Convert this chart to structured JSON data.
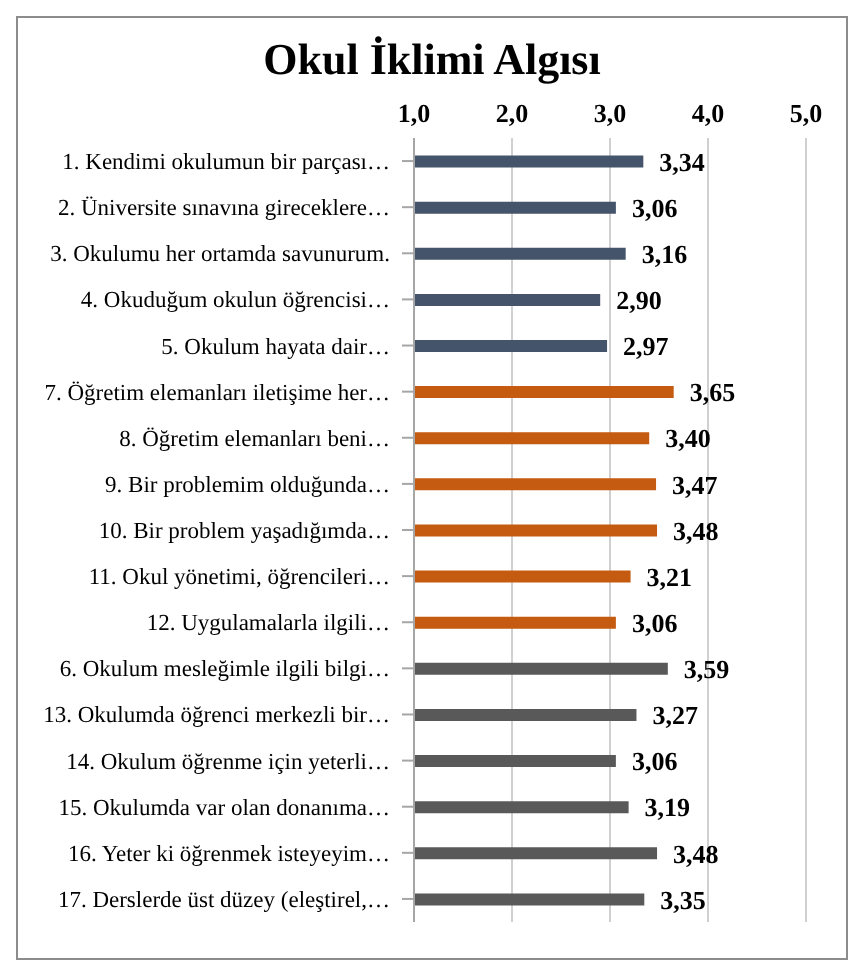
{
  "chart_data": {
    "type": "bar",
    "orientation": "horizontal",
    "title": "Okul İklimi Algısı",
    "categories": [
      "1. Kendimi okulumun bir parçası…",
      "2. Üniversite sınavına gireceklere…",
      "3. Okulumu her ortamda savunurum.",
      "4. Okuduğum okulun öğrencisi…",
      "5. Okulum hayata dair…",
      "7. Öğretim elemanları iletişime her…",
      "8. Öğretim elemanları beni…",
      "9. Bir problemim olduğunda…",
      "10. Bir problem yaşadığımda…",
      "11. Okul yönetimi, öğrencileri…",
      "12. Uygulamalarla ilgili…",
      "6. Okulum mesleğimle ilgili bilgi…",
      "13. Okulumda öğrenci merkezli bir…",
      "14. Okulum öğrenme için yeterli…",
      "15. Okulumda var olan donanıma…",
      "16. Yeter ki öğrenmek isteyeyim…",
      "17. Derslerde üst düzey (eleştirel,…"
    ],
    "values": [
      3.34,
      3.06,
      3.16,
      2.9,
      2.97,
      3.65,
      3.4,
      3.47,
      3.48,
      3.21,
      3.06,
      3.59,
      3.27,
      3.06,
      3.19,
      3.48,
      3.35
    ],
    "value_labels": [
      "3,34",
      "3,06",
      "3,16",
      "2,90",
      "2,97",
      "3,65",
      "3,40",
      "3,47",
      "3,48",
      "3,21",
      "3,06",
      "3,59",
      "3,27",
      "3,06",
      "3,19",
      "3,48",
      "3,35"
    ],
    "colors": [
      "#44546a",
      "#44546a",
      "#44546a",
      "#44546a",
      "#44546a",
      "#c55a11",
      "#c55a11",
      "#c55a11",
      "#c55a11",
      "#c55a11",
      "#c55a11",
      "#595959",
      "#595959",
      "#595959",
      "#595959",
      "#595959",
      "#595959"
    ],
    "xlim": [
      1,
      5
    ],
    "xticks": [
      {
        "value": 1,
        "label": "1,0"
      },
      {
        "value": 2,
        "label": "2,0"
      },
      {
        "value": 3,
        "label": "3,0"
      },
      {
        "value": 4,
        "label": "4,0"
      },
      {
        "value": 5,
        "label": "5,0"
      }
    ],
    "grid": "x"
  }
}
